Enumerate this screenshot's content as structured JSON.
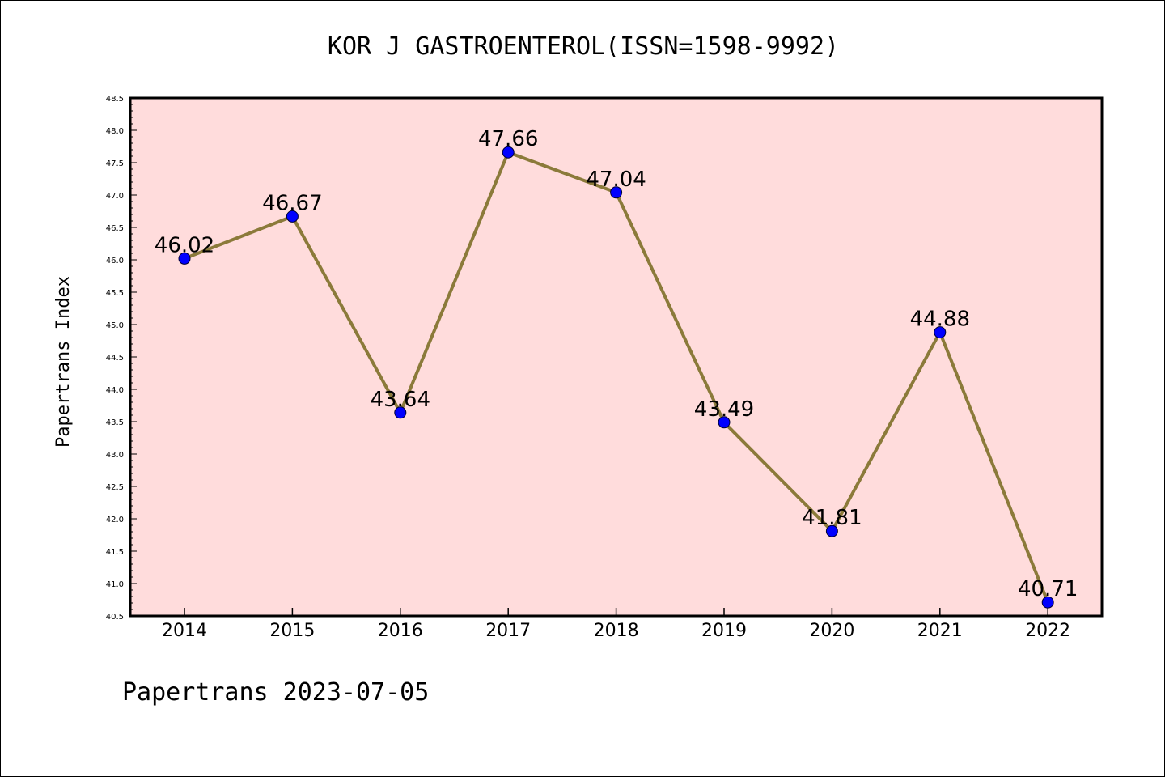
{
  "chart_data": {
    "type": "line",
    "title": "KOR J GASTROENTEROL(ISSN=1598-9992)",
    "xlabel": "",
    "ylabel": "Papertrans Index",
    "categories": [
      "2014",
      "2015",
      "2016",
      "2017",
      "2018",
      "2019",
      "2020",
      "2021",
      "2022"
    ],
    "series": [
      {
        "values": [
          46.02,
          46.67,
          43.64,
          47.66,
          47.04,
          43.49,
          41.81,
          44.88,
          40.71
        ],
        "value_labels": [
          "46.02",
          "46.67",
          "43.64",
          "47.66",
          "47.04",
          "43.49",
          "41.81",
          "44.88",
          "40.71"
        ],
        "line_color": "#8b7a3a",
        "marker_color": "#0000ff"
      }
    ],
    "ylim": [
      40.5,
      48.5
    ],
    "yticks": [
      "40.5",
      "41.0",
      "41.5",
      "42.0",
      "42.5",
      "43.0",
      "43.5",
      "44.0",
      "44.5",
      "45.0",
      "45.5",
      "46.0",
      "46.5",
      "47.0",
      "47.5",
      "48.0",
      "48.5"
    ],
    "grid": false,
    "plot_background": "#ffdcdc",
    "footer": "Papertrans 2023-07-05"
  }
}
